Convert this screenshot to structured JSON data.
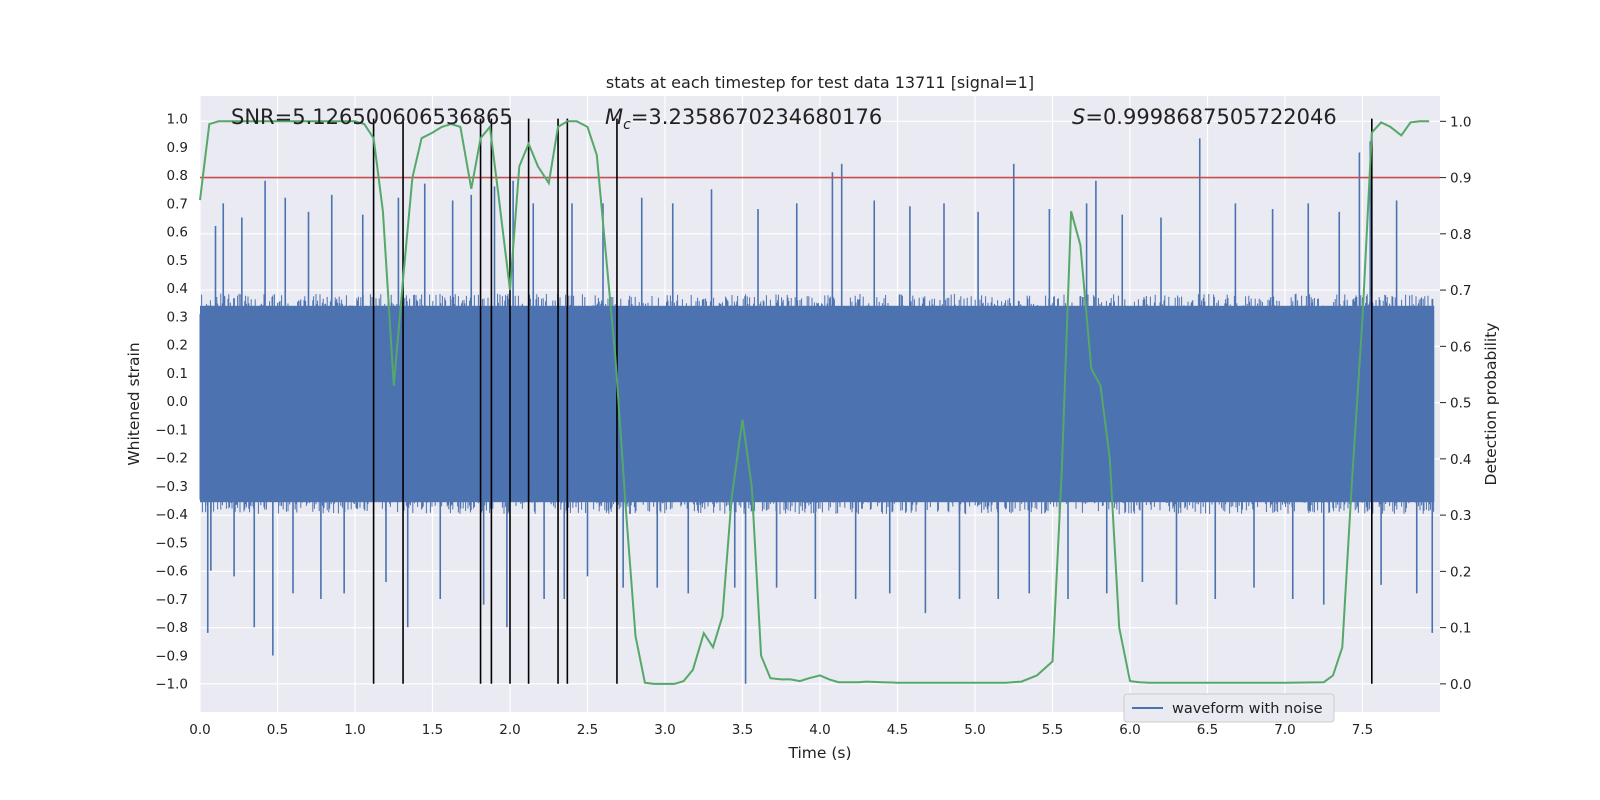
{
  "chart_data": {
    "type": "line",
    "title": "stats at each timestep for test data 13711 [signal=1]",
    "xlabel": "Time (s)",
    "ylabel": "Whitened strain",
    "ylabel_right": "Detection probability",
    "xlim": [
      0.0,
      8.0
    ],
    "ylim": [
      -1.1,
      1.08
    ],
    "ylim_right": [
      -0.05,
      1.045
    ],
    "x_ticks": [
      0.0,
      0.5,
      1.0,
      1.5,
      2.0,
      2.5,
      3.0,
      3.5,
      4.0,
      4.5,
      5.0,
      5.5,
      6.0,
      6.5,
      7.0,
      7.5
    ],
    "x_tick_labels": [
      "0.0",
      "0.5",
      "1.0",
      "1.5",
      "2.0",
      "2.5",
      "3.0",
      "3.5",
      "4.0",
      "4.5",
      "5.0",
      "5.5",
      "6.0",
      "6.5",
      "7.0",
      "7.5"
    ],
    "y_ticks": [
      -1.0,
      -0.9,
      -0.8,
      -0.7,
      -0.6,
      -0.5,
      -0.4,
      -0.3,
      -0.2,
      -0.1,
      0.0,
      0.1,
      0.2,
      0.3,
      0.4,
      0.5,
      0.6,
      0.7,
      0.8,
      0.9,
      1.0
    ],
    "y_tick_labels": [
      "−1.0",
      "−0.9",
      "−0.8",
      "−0.7",
      "−0.6",
      "−0.5",
      "−0.4",
      "−0.3",
      "−0.2",
      "−0.1",
      "0.0",
      "0.1",
      "0.2",
      "0.3",
      "0.4",
      "0.5",
      "0.6",
      "0.7",
      "0.8",
      "0.9",
      "1.0"
    ],
    "y_right_ticks": [
      0.0,
      0.1,
      0.2,
      0.3,
      0.4,
      0.5,
      0.6,
      0.7,
      0.8,
      0.9,
      1.0
    ],
    "y_right_tick_labels": [
      "0.0",
      "0.1",
      "0.2",
      "0.3",
      "0.4",
      "0.5",
      "0.6",
      "0.7",
      "0.8",
      "0.9",
      "1.0"
    ],
    "annotations": {
      "snr": "SNR=5.126500606536865",
      "mc_symbol": "M",
      "mc_subscript": "c",
      "mc_value": "=3.2358670234680176",
      "s_symbol": "S",
      "s_value": "=0.9998687505722046"
    },
    "threshold": {
      "axis": "right",
      "value": 0.9,
      "color": "#c44e52"
    },
    "detection_markers_x": [
      1.12,
      1.31,
      1.81,
      1.88,
      2.0,
      2.12,
      2.31,
      2.37,
      2.69,
      7.56
    ],
    "detection_marker_range": [
      -1.0,
      1.0
    ],
    "series": [
      {
        "name": "waveform with noise",
        "axis": "left",
        "color": "#4c72b0",
        "core_envelope": [
          -0.4,
          0.38
        ],
        "spikes": [
          [
            0.05,
            -0.82
          ],
          [
            0.07,
            -0.6
          ],
          [
            0.1,
            0.62
          ],
          [
            0.15,
            0.7
          ],
          [
            0.22,
            -0.62
          ],
          [
            0.27,
            0.65
          ],
          [
            0.35,
            -0.8
          ],
          [
            0.42,
            0.78
          ],
          [
            0.47,
            -0.9
          ],
          [
            0.55,
            0.72
          ],
          [
            0.6,
            -0.68
          ],
          [
            0.7,
            0.67
          ],
          [
            0.78,
            -0.7
          ],
          [
            0.85,
            0.73
          ],
          [
            0.93,
            -0.68
          ],
          [
            1.05,
            0.66
          ],
          [
            1.2,
            -0.64
          ],
          [
            1.28,
            0.72
          ],
          [
            1.34,
            -0.8
          ],
          [
            1.45,
            0.77
          ],
          [
            1.55,
            -0.7
          ],
          [
            1.63,
            0.71
          ],
          [
            1.75,
            0.73
          ],
          [
            1.83,
            -0.72
          ],
          [
            1.9,
            0.76
          ],
          [
            1.98,
            -0.8
          ],
          [
            2.02,
            0.78
          ],
          [
            2.15,
            0.7
          ],
          [
            2.22,
            -0.7
          ],
          [
            2.35,
            -0.7
          ],
          [
            2.4,
            0.7
          ],
          [
            2.5,
            -0.62
          ],
          [
            2.6,
            0.7
          ],
          [
            2.73,
            -0.66
          ],
          [
            2.85,
            0.72
          ],
          [
            2.95,
            -0.66
          ],
          [
            3.05,
            0.7
          ],
          [
            3.15,
            -0.68
          ],
          [
            3.3,
            0.75
          ],
          [
            3.45,
            -0.66
          ],
          [
            3.52,
            -1.0
          ],
          [
            3.6,
            0.68
          ],
          [
            3.72,
            -0.66
          ],
          [
            3.85,
            0.7
          ],
          [
            3.97,
            -0.7
          ],
          [
            4.08,
            0.81
          ],
          [
            4.14,
            0.84
          ],
          [
            4.23,
            -0.7
          ],
          [
            4.35,
            0.71
          ],
          [
            4.45,
            -0.68
          ],
          [
            4.58,
            0.69
          ],
          [
            4.68,
            -0.75
          ],
          [
            4.8,
            0.7
          ],
          [
            4.9,
            -0.7
          ],
          [
            5.02,
            0.67
          ],
          [
            5.15,
            -0.7
          ],
          [
            5.25,
            0.84
          ],
          [
            5.35,
            -0.68
          ],
          [
            5.48,
            0.68
          ],
          [
            5.6,
            -0.7
          ],
          [
            5.72,
            0.7
          ],
          [
            5.78,
            0.78
          ],
          [
            5.85,
            -0.68
          ],
          [
            5.95,
            0.66
          ],
          [
            6.08,
            -0.64
          ],
          [
            6.2,
            0.65
          ],
          [
            6.3,
            -0.72
          ],
          [
            6.45,
            0.93
          ],
          [
            6.55,
            -0.7
          ],
          [
            6.68,
            0.7
          ],
          [
            6.8,
            -0.66
          ],
          [
            6.92,
            0.68
          ],
          [
            7.05,
            -0.7
          ],
          [
            7.15,
            0.7
          ],
          [
            7.25,
            -0.72
          ],
          [
            7.35,
            0.67
          ],
          [
            7.48,
            0.88
          ],
          [
            7.55,
            0.92
          ],
          [
            7.62,
            -0.65
          ],
          [
            7.72,
            0.71
          ],
          [
            7.85,
            -0.68
          ],
          [
            7.95,
            -0.82
          ]
        ]
      },
      {
        "name": "detection probability",
        "axis": "right",
        "color": "#55a868",
        "x": [
          0.0,
          0.06,
          0.12,
          0.25,
          0.5,
          0.75,
          1.0,
          1.06,
          1.12,
          1.18,
          1.25,
          1.31,
          1.37,
          1.43,
          1.5,
          1.56,
          1.62,
          1.68,
          1.75,
          1.81,
          1.87,
          1.93,
          2.0,
          2.06,
          2.12,
          2.18,
          2.25,
          2.31,
          2.37,
          2.43,
          2.5,
          2.56,
          2.62,
          2.68,
          2.75,
          2.81,
          2.87,
          2.93,
          3.0,
          3.06,
          3.12,
          3.18,
          3.25,
          3.31,
          3.37,
          3.43,
          3.5,
          3.56,
          3.62,
          3.68,
          3.75,
          3.81,
          3.87,
          3.93,
          4.0,
          4.06,
          4.12,
          4.18,
          4.25,
          4.3,
          4.4,
          4.5,
          4.6,
          4.7,
          4.8,
          4.9,
          5.0,
          5.1,
          5.2,
          5.3,
          5.4,
          5.5,
          5.56,
          5.62,
          5.68,
          5.75,
          5.81,
          5.87,
          5.93,
          6.0,
          6.06,
          6.12,
          6.18,
          6.25,
          6.5,
          6.75,
          7.0,
          7.25,
          7.31,
          7.37,
          7.43,
          7.5,
          7.56,
          7.62,
          7.68,
          7.75,
          7.81,
          7.87,
          7.93
        ],
        "y": [
          0.86,
          0.995,
          1.0,
          1.0,
          1.0,
          1.0,
          1.0,
          0.995,
          0.97,
          0.84,
          0.53,
          0.72,
          0.9,
          0.97,
          0.98,
          0.99,
          0.995,
          0.99,
          0.88,
          0.97,
          0.99,
          0.86,
          0.7,
          0.92,
          0.96,
          0.92,
          0.89,
          0.99,
          1.0,
          1.0,
          0.99,
          0.94,
          0.76,
          0.58,
          0.3,
          0.085,
          0.002,
          0.0,
          0.0,
          0.0,
          0.005,
          0.025,
          0.09,
          0.065,
          0.12,
          0.33,
          0.47,
          0.35,
          0.05,
          0.01,
          0.008,
          0.008,
          0.005,
          0.01,
          0.015,
          0.008,
          0.003,
          0.003,
          0.003,
          0.004,
          0.003,
          0.002,
          0.002,
          0.002,
          0.002,
          0.002,
          0.002,
          0.002,
          0.002,
          0.004,
          0.015,
          0.04,
          0.38,
          0.84,
          0.78,
          0.56,
          0.53,
          0.4,
          0.1,
          0.005,
          0.003,
          0.002,
          0.002,
          0.002,
          0.002,
          0.002,
          0.002,
          0.003,
          0.015,
          0.065,
          0.35,
          0.65,
          0.98,
          0.998,
          0.99,
          0.975,
          0.998,
          1.0,
          1.0
        ]
      }
    ],
    "legend": {
      "location": "lower-right",
      "entries": [
        "waveform with noise"
      ]
    }
  }
}
